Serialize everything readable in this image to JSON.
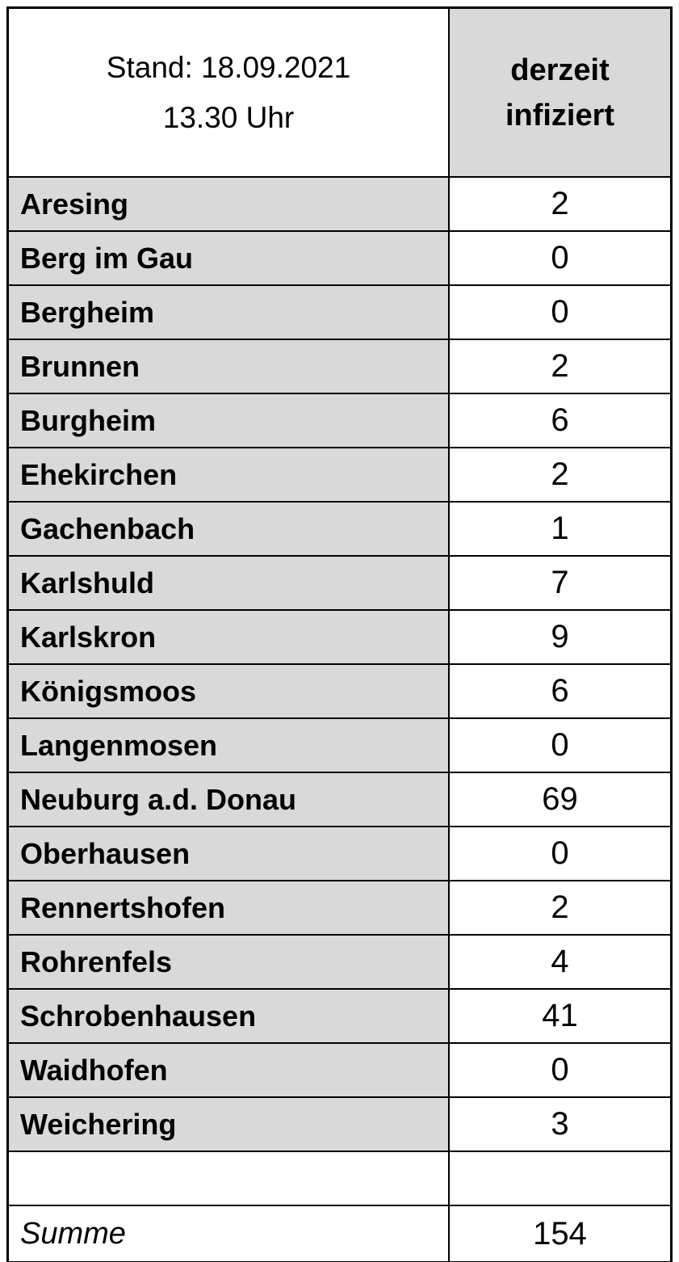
{
  "table": {
    "header": {
      "stand_line1": "Stand: 18.09.2021",
      "stand_line2": "13.30 Uhr",
      "value_col_line1": "derzeit",
      "value_col_line2": "infiziert"
    },
    "rows": [
      {
        "name": "Aresing",
        "value": "2"
      },
      {
        "name": "Berg im Gau",
        "value": "0"
      },
      {
        "name": "Bergheim",
        "value": "0"
      },
      {
        "name": "Brunnen",
        "value": "2"
      },
      {
        "name": "Burgheim",
        "value": "6"
      },
      {
        "name": "Ehekirchen",
        "value": "2"
      },
      {
        "name": "Gachenbach",
        "value": "1"
      },
      {
        "name": "Karlshuld",
        "value": "7"
      },
      {
        "name": "Karlskron",
        "value": "9"
      },
      {
        "name": "Königsmoos",
        "value": "6"
      },
      {
        "name": "Langenmosen",
        "value": "0"
      },
      {
        "name": "Neuburg a.d. Donau",
        "value": "69"
      },
      {
        "name": "Oberhausen",
        "value": "0"
      },
      {
        "name": "Rennertshofen",
        "value": "2"
      },
      {
        "name": "Rohrenfels",
        "value": "4"
      },
      {
        "name": "Schrobenhausen",
        "value": "41"
      },
      {
        "name": "Waidhofen",
        "value": "0"
      },
      {
        "name": "Weichering",
        "value": "3"
      }
    ],
    "summary": {
      "label": "Summe",
      "value": "154"
    },
    "colors": {
      "cell_gray": "#d9d9d9",
      "border": "#000000",
      "background": "#ffffff"
    }
  }
}
